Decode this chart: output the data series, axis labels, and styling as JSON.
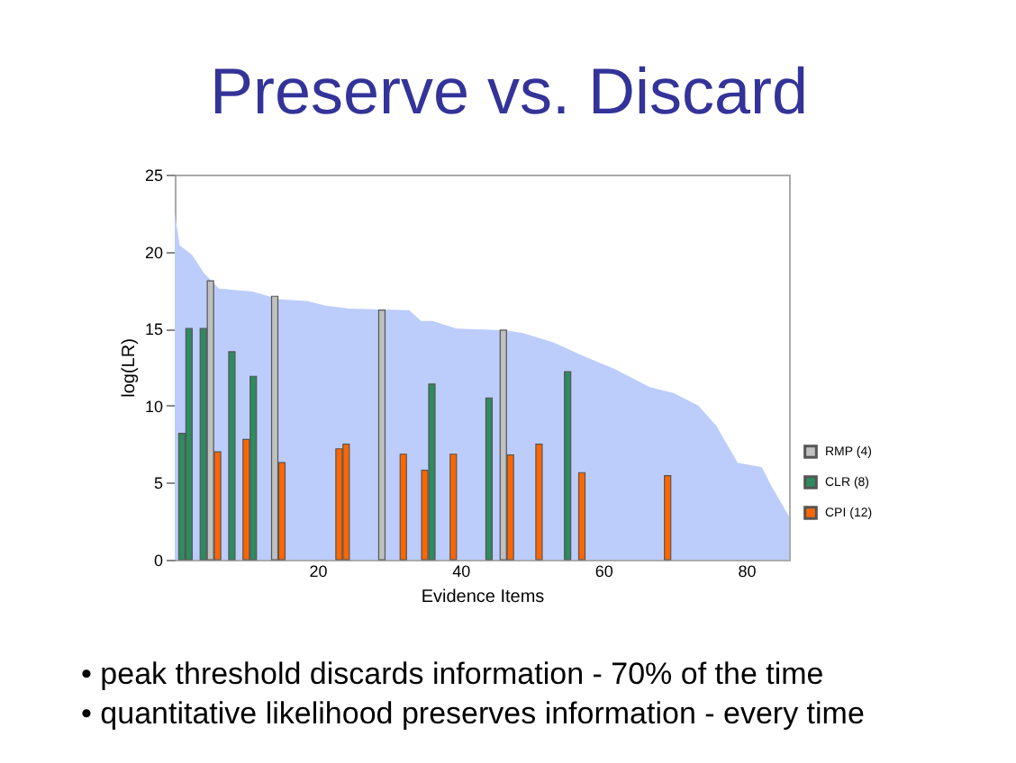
{
  "chart_data": {
    "type": "bar",
    "title": "Preserve vs. Discard",
    "xlabel": "Evidence Items",
    "ylabel": "log(LR)",
    "xlim": [
      0,
      86
    ],
    "xticks": [
      20,
      40,
      60,
      80
    ],
    "ylim": [
      0,
      25
    ],
    "yticks": [
      0,
      5,
      10,
      15,
      20,
      25
    ],
    "grid": false,
    "legend": "right",
    "series": [
      {
        "type": "area",
        "color": "#bccdfb",
        "x": [
          0,
          0.7,
          2.4,
          4.1,
          6.2,
          10.9,
          14.7,
          18.5,
          21,
          24.4,
          32.8,
          34.5,
          36.1,
          39.5,
          46.2,
          48.8,
          53,
          57.3,
          61.5,
          66.5,
          69.9,
          73.3,
          75.8,
          78.8,
          82.2,
          83.5,
          86
        ],
        "values": [
          22.5,
          20.4,
          19.8,
          18.6,
          17.6,
          17.4,
          16.9,
          16.8,
          16.5,
          16.3,
          16.2,
          15.5,
          15.5,
          15.0,
          14.9,
          14.7,
          14.1,
          13.2,
          12.4,
          11.2,
          10.8,
          10.0,
          8.7,
          6.3,
          6.0,
          4.8,
          2.8
        ]
      },
      {
        "name": "RMP (4)",
        "color": "#c0c0c0",
        "x": [
          5,
          14,
          29,
          46
        ],
        "values": [
          18.1,
          17.1,
          16.2,
          14.9
        ]
      },
      {
        "name": "CLR (8)",
        "color": "#2e8b5f",
        "x": [
          1,
          2,
          4,
          8,
          11,
          36,
          44,
          55
        ],
        "values": [
          8.2,
          15,
          15,
          13.5,
          11.9,
          11.4,
          10.5,
          12.2
        ]
      },
      {
        "name": "CPI (12)",
        "color": "#ff6600",
        "x": [
          6,
          10,
          15,
          23,
          24,
          32,
          35,
          39,
          47,
          51,
          57,
          69
        ],
        "values": [
          7.0,
          7.8,
          6.3,
          7.2,
          7.5,
          6.85,
          5.8,
          6.85,
          6.8,
          7.5,
          5.65,
          5.45
        ]
      }
    ],
    "annotations": [
      "• peak threshold discards information - 70% of the time",
      "• quantitative likelihood preserves information - every time"
    ]
  }
}
